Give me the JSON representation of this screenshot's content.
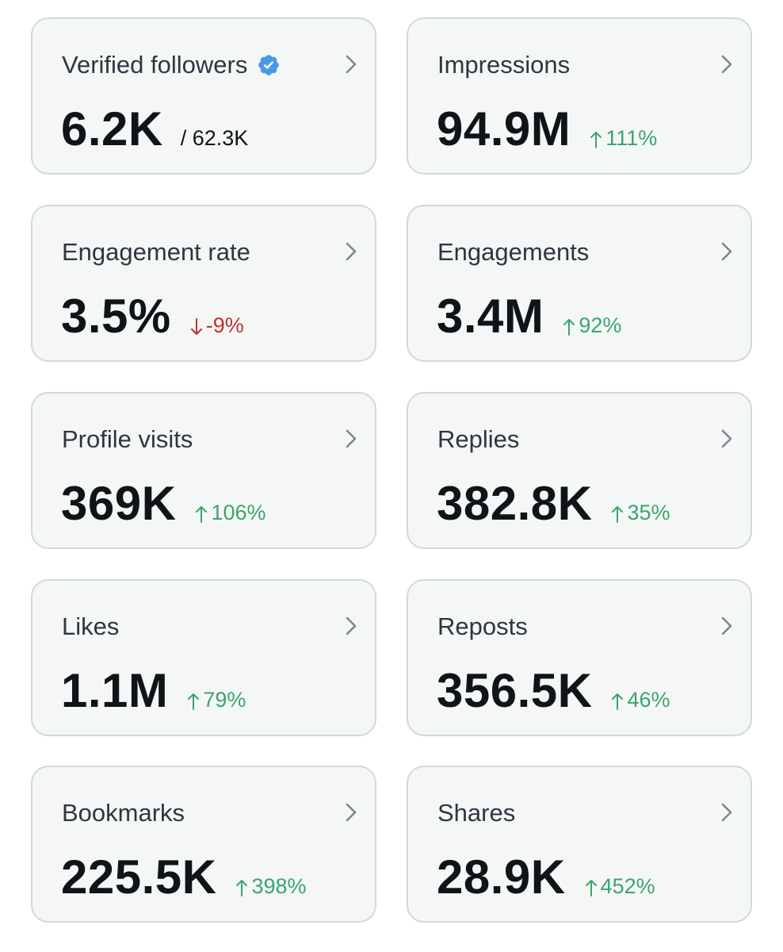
{
  "colors": {
    "up": "#3aa66b",
    "down": "#c4302b",
    "verified": "#4a99e9"
  },
  "cards": [
    {
      "label": "Verified followers",
      "value": "6.2K",
      "sub": "/ 62.3K"
    },
    {
      "label": "Impressions",
      "value": "94.9M",
      "delta": "111%",
      "direction": "up"
    },
    {
      "label": "Engagement rate",
      "value": "3.5%",
      "delta": "-9%",
      "direction": "down"
    },
    {
      "label": "Engagements",
      "value": "3.4M",
      "delta": "92%",
      "direction": "up"
    },
    {
      "label": "Profile visits",
      "value": "369K",
      "delta": "106%",
      "direction": "up"
    },
    {
      "label": "Replies",
      "value": "382.8K",
      "delta": "35%",
      "direction": "up"
    },
    {
      "label": "Likes",
      "value": "1.1M",
      "delta": "79%",
      "direction": "up"
    },
    {
      "label": "Reposts",
      "value": "356.5K",
      "delta": "46%",
      "direction": "up"
    },
    {
      "label": "Bookmarks",
      "value": "225.5K",
      "delta": "398%",
      "direction": "up"
    },
    {
      "label": "Shares",
      "value": "28.9K",
      "delta": "452%",
      "direction": "up"
    }
  ]
}
